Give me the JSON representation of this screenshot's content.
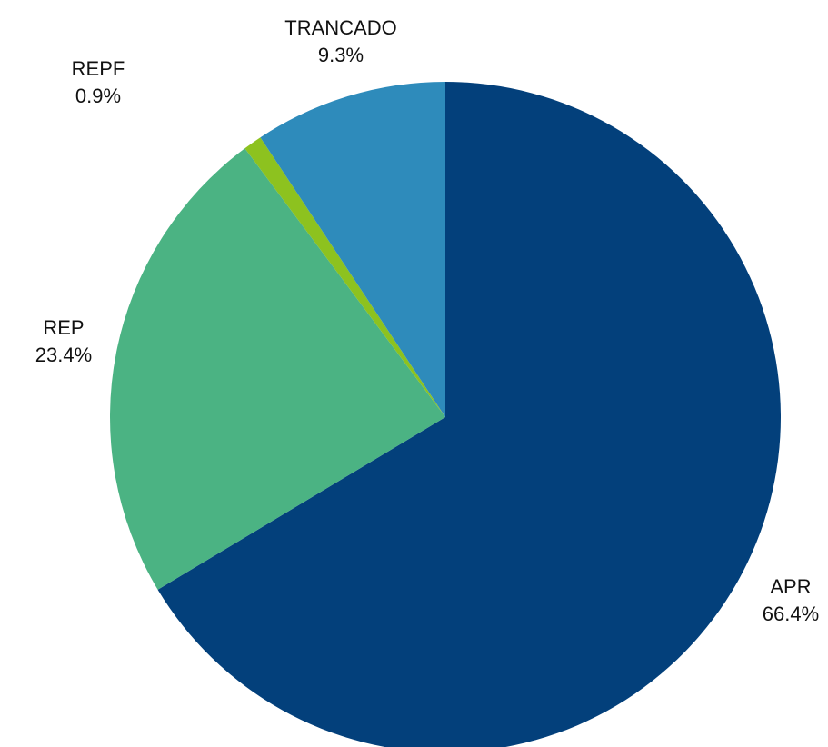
{
  "chart_data": {
    "type": "pie",
    "categories": [
      "APR",
      "REP",
      "REPF",
      "TRANCADO"
    ],
    "values": [
      66.4,
      23.4,
      0.9,
      9.3
    ],
    "value_labels": [
      "66.4%",
      "23.4%",
      "0.9%",
      "9.3%"
    ],
    "colors": [
      "#03407b",
      "#4bb383",
      "#8dc21f",
      "#2e8bbb"
    ]
  }
}
